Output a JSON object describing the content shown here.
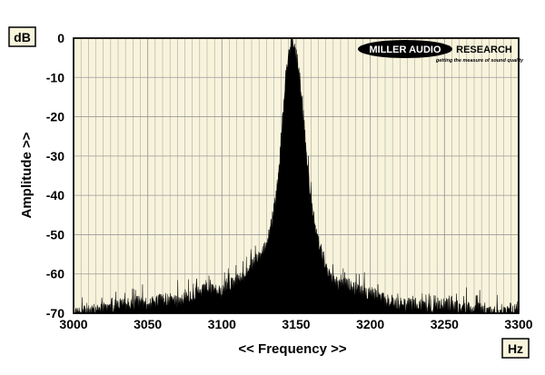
{
  "chart_data": {
    "type": "area",
    "title": "",
    "xlabel": "<< Frequency >>",
    "ylabel": "Amplitude >>",
    "x_unit": "Hz",
    "y_unit": "dB",
    "xlim": [
      3000,
      3300
    ],
    "ylim": [
      -70,
      0
    ],
    "x_ticks": [
      "3000",
      "3050",
      "3100",
      "3150",
      "3200",
      "3250",
      "3300"
    ],
    "y_ticks": [
      "0",
      "-10",
      "-20",
      "-30",
      "-40",
      "-50",
      "-60",
      "-70"
    ],
    "grid": true,
    "series": [
      {
        "x": [
          3000,
          3010,
          3020,
          3030,
          3040,
          3050,
          3060,
          3070,
          3080,
          3090,
          3100,
          3105,
          3110,
          3115,
          3120,
          3125,
          3130,
          3133,
          3136,
          3139,
          3141,
          3143,
          3145,
          3147,
          3149,
          3151,
          3153,
          3155,
          3157,
          3159,
          3162,
          3165,
          3168,
          3172,
          3176,
          3180,
          3185,
          3190,
          3195,
          3200,
          3210,
          3220,
          3230,
          3240,
          3250,
          3260,
          3270,
          3280,
          3290,
          3300
        ],
        "y": [
          -68,
          -68,
          -67,
          -66,
          -66,
          -66,
          -65,
          -65,
          -64,
          -62,
          -63,
          -61,
          -60,
          -59,
          -56,
          -54,
          -51,
          -46,
          -40,
          -30,
          -18,
          -8,
          -3,
          0,
          -1,
          -4,
          -10,
          -20,
          -28,
          -36,
          -44,
          -50,
          -54,
          -58,
          -60,
          -61,
          -61,
          -62,
          -63,
          -63,
          -65,
          -66,
          -66,
          -67,
          -66,
          -67,
          -67,
          -68,
          -68,
          -68
        ]
      }
    ]
  },
  "ui": {
    "y_unit_box": "dB",
    "x_unit_box": "Hz",
    "logo_text_a": "MILLER AUDIO",
    "logo_text_b": "RESEARCH",
    "logo_tagline": "getting the measure of sound quality"
  },
  "colors": {
    "plot_background": "#f8f4dc",
    "grid_line": "#9a9a9a",
    "trace_fill": "#000000"
  }
}
